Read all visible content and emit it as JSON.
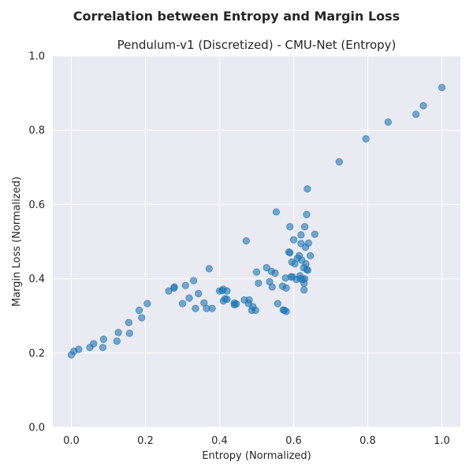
{
  "figure": {
    "suptitle": "Correlation between Entropy and Margin Loss"
  },
  "chart_data": {
    "type": "scatter",
    "title": "Pendulum-v1 (Discretized) - CMU-Net (Entropy)",
    "xlabel": "Entropy (Normalized)",
    "ylabel": "Margin Loss (Normalized)",
    "xlim": [
      -0.05,
      1.05
    ],
    "ylim": [
      0.0,
      1.0
    ],
    "xticks": [
      "0.0",
      "0.2",
      "0.4",
      "0.6",
      "0.8",
      "1.0"
    ],
    "yticks": [
      "0.0",
      "0.2",
      "0.4",
      "0.6",
      "0.8",
      "1.0"
    ],
    "grid": true,
    "background": "#eaeaf2",
    "grid_color": "#ffffff",
    "marker_color": "#1f77b4",
    "marker_alpha": 0.6,
    "points": [
      [
        0.0,
        0.195
      ],
      [
        0.007,
        0.205
      ],
      [
        0.02,
        0.21
      ],
      [
        0.05,
        0.215
      ],
      [
        0.06,
        0.225
      ],
      [
        0.085,
        0.215
      ],
      [
        0.087,
        0.237
      ],
      [
        0.123,
        0.232
      ],
      [
        0.127,
        0.255
      ],
      [
        0.155,
        0.282
      ],
      [
        0.157,
        0.253
      ],
      [
        0.183,
        0.315
      ],
      [
        0.19,
        0.295
      ],
      [
        0.205,
        0.333
      ],
      [
        0.263,
        0.367
      ],
      [
        0.277,
        0.375
      ],
      [
        0.278,
        0.378
      ],
      [
        0.3,
        0.333
      ],
      [
        0.308,
        0.382
      ],
      [
        0.318,
        0.348
      ],
      [
        0.33,
        0.395
      ],
      [
        0.335,
        0.32
      ],
      [
        0.343,
        0.36
      ],
      [
        0.358,
        0.335
      ],
      [
        0.365,
        0.32
      ],
      [
        0.372,
        0.427
      ],
      [
        0.38,
        0.32
      ],
      [
        0.4,
        0.367
      ],
      [
        0.407,
        0.368
      ],
      [
        0.41,
        0.34
      ],
      [
        0.41,
        0.372
      ],
      [
        0.415,
        0.346
      ],
      [
        0.42,
        0.345
      ],
      [
        0.42,
        0.367
      ],
      [
        0.44,
        0.335
      ],
      [
        0.44,
        0.33
      ],
      [
        0.445,
        0.332
      ],
      [
        0.467,
        0.343
      ],
      [
        0.472,
        0.502
      ],
      [
        0.478,
        0.333
      ],
      [
        0.48,
        0.343
      ],
      [
        0.487,
        0.315
      ],
      [
        0.49,
        0.325
      ],
      [
        0.497,
        0.315
      ],
      [
        0.5,
        0.418
      ],
      [
        0.505,
        0.388
      ],
      [
        0.527,
        0.43
      ],
      [
        0.535,
        0.392
      ],
      [
        0.54,
        0.42
      ],
      [
        0.542,
        0.378
      ],
      [
        0.55,
        0.415
      ],
      [
        0.553,
        0.58
      ],
      [
        0.557,
        0.333
      ],
      [
        0.57,
        0.38
      ],
      [
        0.572,
        0.316
      ],
      [
        0.575,
        0.315
      ],
      [
        0.578,
        0.402
      ],
      [
        0.58,
        0.312
      ],
      [
        0.58,
        0.375
      ],
      [
        0.587,
        0.472
      ],
      [
        0.59,
        0.54
      ],
      [
        0.59,
        0.47
      ],
      [
        0.593,
        0.405
      ],
      [
        0.595,
        0.445
      ],
      [
        0.597,
        0.405
      ],
      [
        0.6,
        0.505
      ],
      [
        0.603,
        0.44
      ],
      [
        0.607,
        0.398
      ],
      [
        0.61,
        0.455
      ],
      [
        0.615,
        0.462
      ],
      [
        0.617,
        0.408
      ],
      [
        0.618,
        0.4
      ],
      [
        0.62,
        0.518
      ],
      [
        0.62,
        0.495
      ],
      [
        0.622,
        0.45
      ],
      [
        0.625,
        0.398
      ],
      [
        0.627,
        0.43
      ],
      [
        0.628,
        0.37
      ],
      [
        0.628,
        0.388
      ],
      [
        0.63,
        0.4
      ],
      [
        0.63,
        0.54
      ],
      [
        0.632,
        0.485
      ],
      [
        0.633,
        0.44
      ],
      [
        0.635,
        0.425
      ],
      [
        0.635,
        0.573
      ],
      [
        0.637,
        0.642
      ],
      [
        0.638,
        0.423
      ],
      [
        0.64,
        0.496
      ],
      [
        0.645,
        0.462
      ],
      [
        0.657,
        0.52
      ],
      [
        0.723,
        0.715
      ],
      [
        0.795,
        0.777
      ],
      [
        0.855,
        0.822
      ],
      [
        0.93,
        0.843
      ],
      [
        0.95,
        0.866
      ],
      [
        1.0,
        0.915
      ]
    ]
  }
}
